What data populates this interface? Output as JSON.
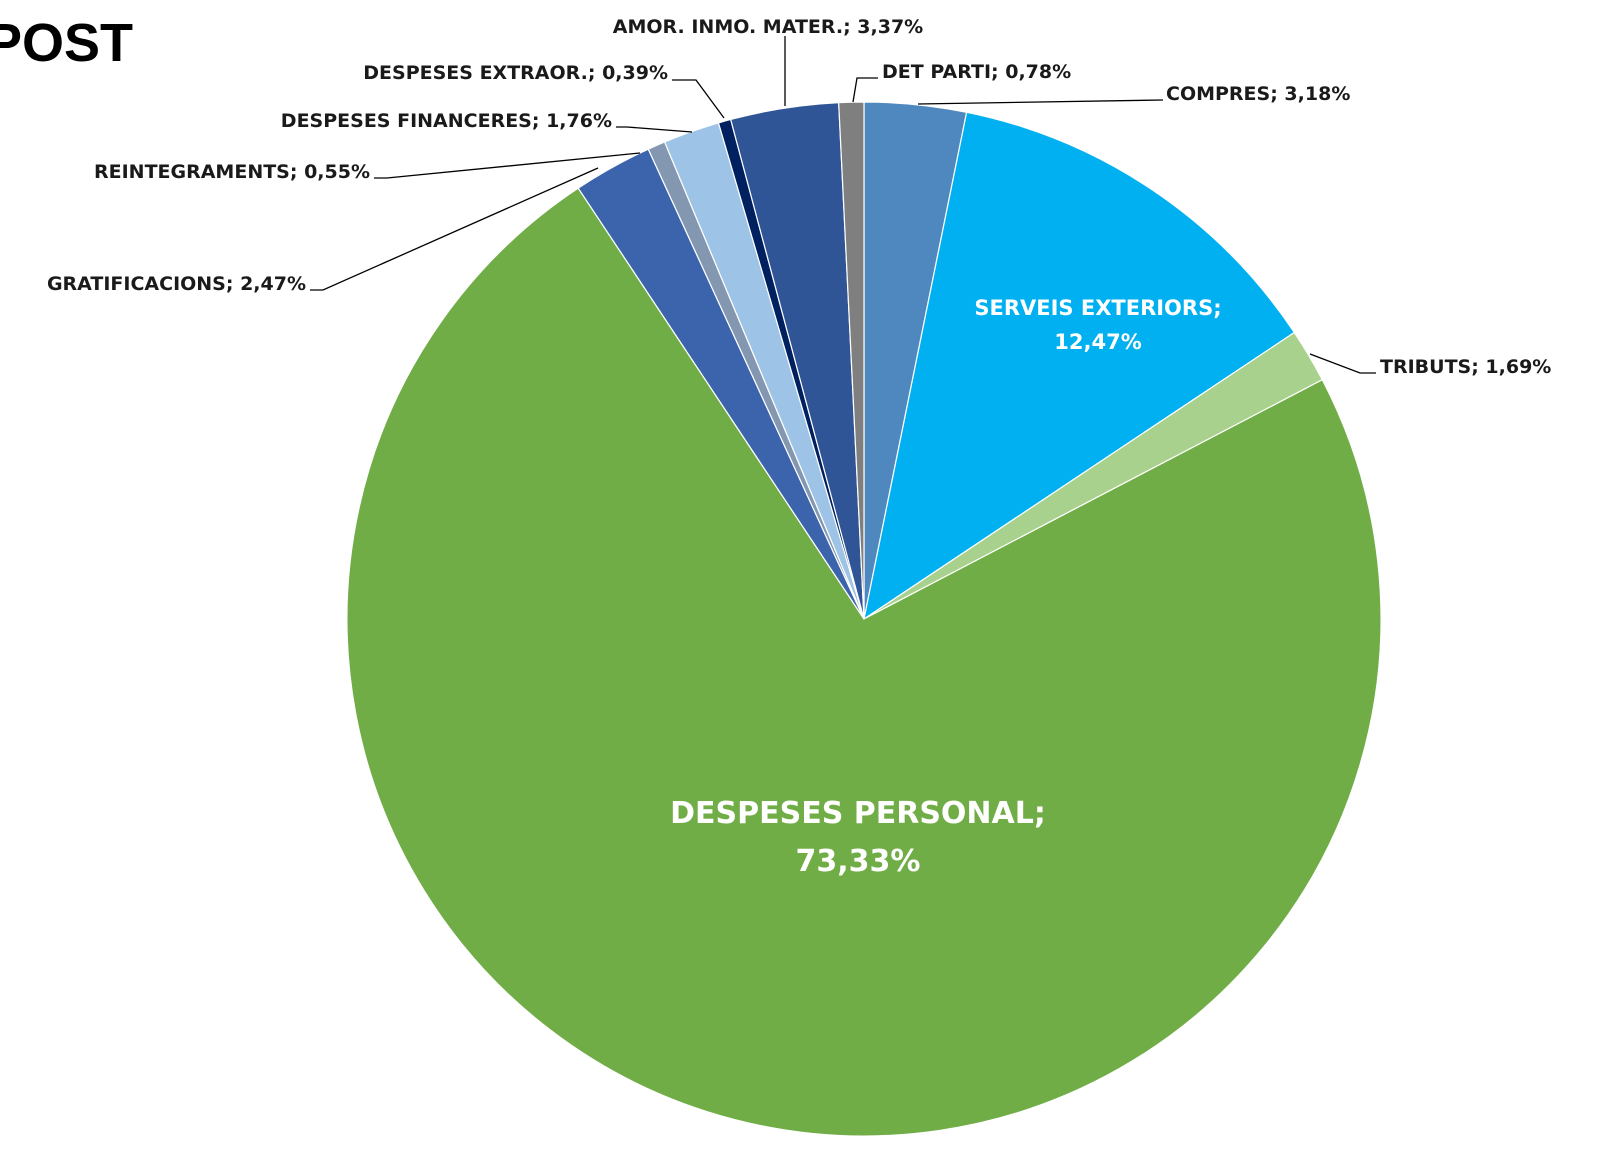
{
  "title": "POST",
  "chart_data": {
    "type": "pie",
    "title": "POST",
    "start": "top, clockwise",
    "slices": [
      {
        "label": "COMPRES",
        "value": 3.18,
        "text": "3,18%",
        "color": "#4f88bf"
      },
      {
        "label": "SERVEIS EXTERIORS",
        "value": 12.47,
        "text": "12,47%",
        "color": "#00b0f0"
      },
      {
        "label": "TRIBUTS",
        "value": 1.69,
        "text": "1,69%",
        "color": "#a9d18e"
      },
      {
        "label": "DESPESES PERSONAL",
        "value": 73.33,
        "text": "73,33%",
        "color": "#70ad47"
      },
      {
        "label": "GRATIFICACIONS",
        "value": 2.47,
        "text": "2,47%",
        "color": "#3c64ad"
      },
      {
        "label": "REINTEGRAMENTS",
        "value": 0.55,
        "text": "0,55%",
        "color": "#8497b0"
      },
      {
        "label": "DESPESES FINANCERES",
        "value": 1.76,
        "text": "1,76%",
        "color": "#9dc3e6"
      },
      {
        "label": "DESPESES EXTRAOR.",
        "value": 0.39,
        "text": "0,39%",
        "color": "#002060"
      },
      {
        "label": "AMOR. INMO. MATER.",
        "value": 3.37,
        "text": "3,37%",
        "color": "#2f5597"
      },
      {
        "label": "DET PARTI",
        "value": 0.78,
        "text": "0,78%",
        "color": "#7f7f7f"
      }
    ]
  }
}
